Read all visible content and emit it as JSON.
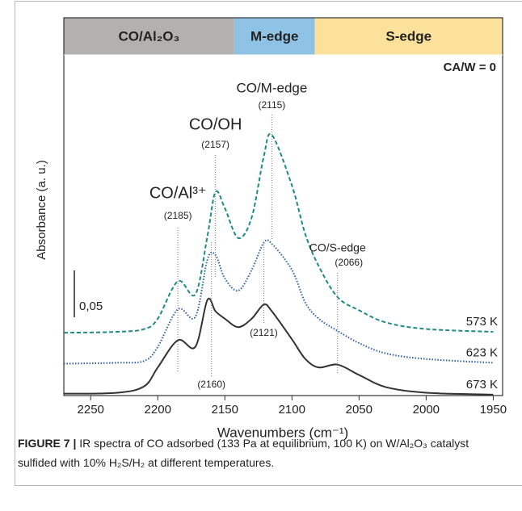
{
  "chart_data": {
    "type": "line",
    "xlabel": "Wavenumbers (cm⁻¹)",
    "ylabel": "Absorbance (a. u.)",
    "note": "CA/W = 0",
    "x": [
      2270,
      2230,
      2210,
      2200,
      2185,
      2172,
      2163,
      2157,
      2150,
      2140,
      2130,
      2121,
      2115,
      2100,
      2090,
      2080,
      2066,
      2050,
      2030,
      2000,
      1950
    ],
    "series": [
      {
        "name": "573 K",
        "color": "#1e8a86",
        "line_style": "dashed",
        "values": [
          0.067,
          0.068,
          0.071,
          0.082,
          0.122,
          0.108,
          0.17,
          0.217,
          0.2,
          0.168,
          0.19,
          0.255,
          0.278,
          0.224,
          0.172,
          0.138,
          0.105,
          0.091,
          0.078,
          0.071,
          0.068
        ]
      },
      {
        "name": "623 K",
        "color": "#2b5fa8",
        "line_style": "dotted",
        "values": [
          0.034,
          0.035,
          0.037,
          0.052,
          0.092,
          0.084,
          0.145,
          0.15,
          0.125,
          0.112,
          0.134,
          0.163,
          0.162,
          0.134,
          0.099,
          0.082,
          0.069,
          0.056,
          0.045,
          0.039,
          0.035
        ]
      },
      {
        "name": "673 K",
        "color": "#333333",
        "line_style": "solid",
        "values": [
          0.002,
          0.003,
          0.01,
          0.03,
          0.059,
          0.052,
          0.102,
          0.09,
          0.082,
          0.073,
          0.082,
          0.097,
          0.09,
          0.06,
          0.039,
          0.03,
          0.033,
          0.022,
          0.009,
          0.003,
          0.001
        ]
      }
    ],
    "xlim": [
      2270,
      1943
    ],
    "ylim": [
      0,
      0.36
    ],
    "xticks": [
      2250,
      2200,
      2150,
      2100,
      2050,
      2000,
      1950
    ],
    "bands": [
      {
        "label": "CO/Al₂O₃",
        "from": 2270,
        "to": 2143,
        "color": "#b3b1b0"
      },
      {
        "label": "M-edge",
        "from": 2143,
        "to": 2083,
        "color": "#8ec3e6"
      },
      {
        "label": "S-edge",
        "from": 2083,
        "to": 1943,
        "color": "#fbe19a"
      }
    ],
    "annotations": [
      {
        "text": "CO/Al³⁺",
        "label": "(2185)",
        "x": 2185
      },
      {
        "text": "CO/OH",
        "label": "(2157)",
        "x": 2157
      },
      {
        "text": "CO/M-edge",
        "label": "(2115)",
        "x": 2115
      },
      {
        "text": "CO/S-edge",
        "label": "(2066)",
        "x": 2066
      },
      {
        "label": "(2160)",
        "x": 2160
      },
      {
        "label": "(2121)",
        "x": 2121
      }
    ],
    "scale_bar": {
      "value": 0.05,
      "label": "0,05"
    }
  },
  "caption": {
    "label": "FIGURE 7 |",
    "text": "IR spectra of CO adsorbed (133 Pa at equilibrium, 100 K) on W/Al₂O₃ catalyst sulfided with 10% H₂S/H₂ at different temperatures."
  }
}
